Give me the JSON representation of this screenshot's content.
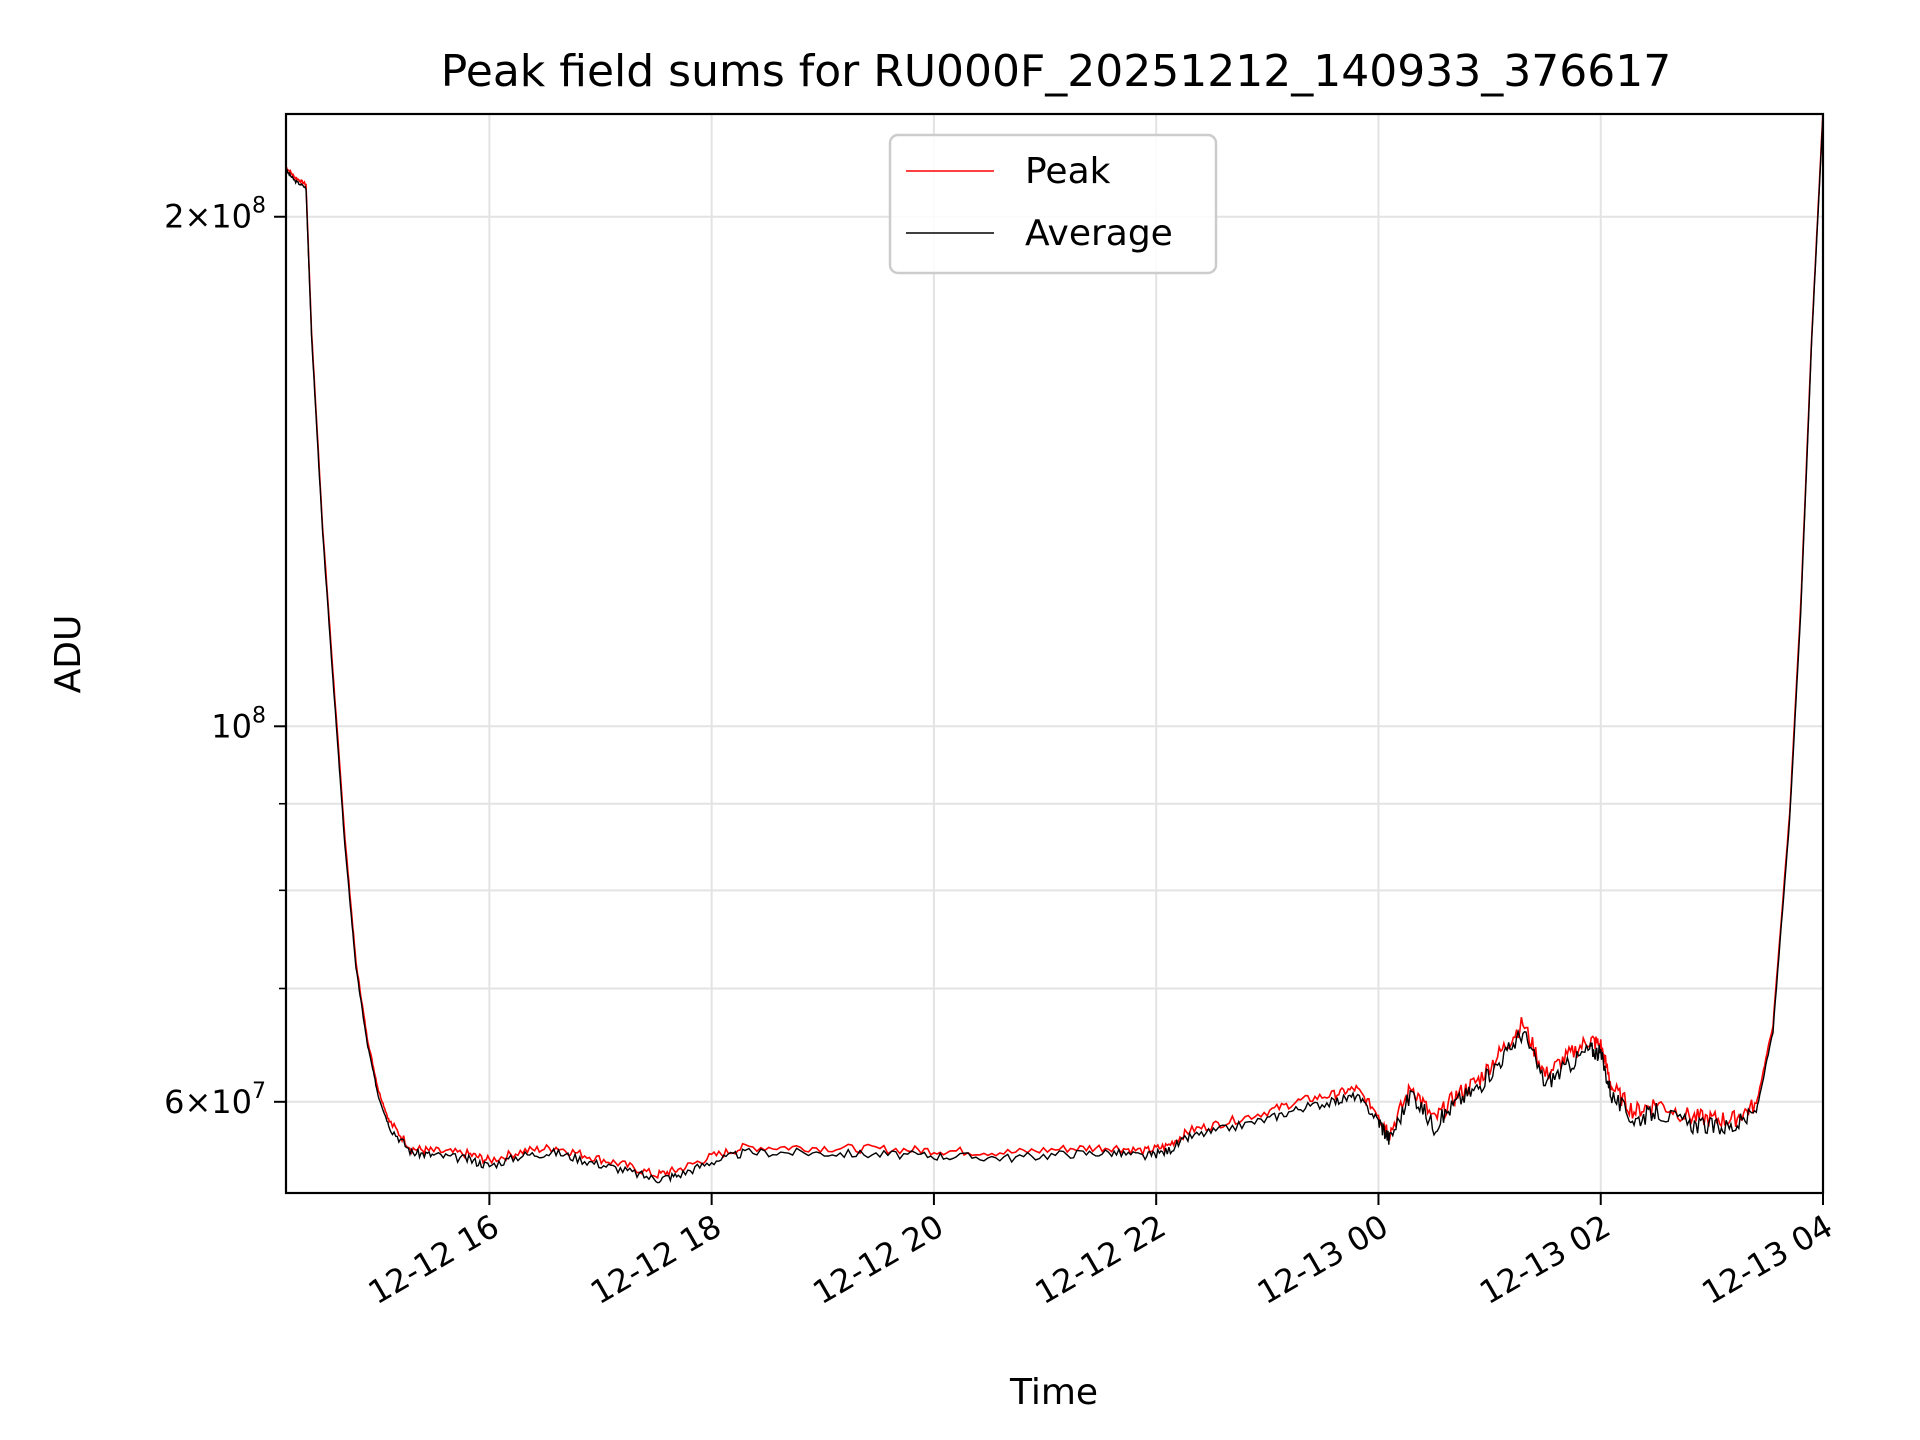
{
  "chart_data": {
    "type": "line",
    "title": "Peak field sums for RU000F_20251212_140933_376617",
    "xlabel": "Time",
    "ylabel": "ADU",
    "yscale": "log",
    "ylim": [
      53000000,
      230000000
    ],
    "xlim_hours": [
      14.17,
      28.0
    ],
    "grid": true,
    "legend_position": "top-center",
    "x_ticks": [
      {
        "hour": 16,
        "label": "12-12 16"
      },
      {
        "hour": 18,
        "label": "12-12 18"
      },
      {
        "hour": 20,
        "label": "12-12 20"
      },
      {
        "hour": 22,
        "label": "12-12 22"
      },
      {
        "hour": 24,
        "label": "12-13 00"
      },
      {
        "hour": 26,
        "label": "12-13 02"
      },
      {
        "hour": 28,
        "label": "12-13 04"
      }
    ],
    "y_ticks_major": [
      {
        "value": 100000000,
        "base": "10",
        "exp": "8",
        "coef": ""
      },
      {
        "value": 200000000,
        "base": "10",
        "exp": "8",
        "coef": "2×"
      },
      {
        "value": 60000000,
        "base": "10",
        "exp": "7",
        "coef": "6×"
      }
    ],
    "y_ticks_minor": [
      70000000,
      80000000,
      90000000
    ],
    "colors": {
      "peak": "#ff0000",
      "average": "#000000"
    },
    "series": [
      {
        "name": "Average",
        "color": "#000000",
        "points": [
          [
            14.17,
            213000000
          ],
          [
            14.25,
            210000000
          ],
          [
            14.35,
            208000000
          ],
          [
            14.4,
            170000000
          ],
          [
            14.5,
            130000000
          ],
          [
            14.6,
            105000000
          ],
          [
            14.7,
            85000000
          ],
          [
            14.8,
            72000000
          ],
          [
            14.9,
            65000000
          ],
          [
            15.0,
            60500000
          ],
          [
            15.1,
            58000000
          ],
          [
            15.3,
            56000000
          ],
          [
            15.5,
            55800000
          ],
          [
            15.8,
            55500000
          ],
          [
            16.0,
            55000000
          ],
          [
            16.3,
            55800000
          ],
          [
            16.6,
            56000000
          ],
          [
            16.9,
            55300000
          ],
          [
            17.2,
            54700000
          ],
          [
            17.5,
            54000000
          ],
          [
            17.7,
            54300000
          ],
          [
            18.0,
            55300000
          ],
          [
            18.3,
            56000000
          ],
          [
            18.8,
            56000000
          ],
          [
            19.3,
            55900000
          ],
          [
            19.8,
            55800000
          ],
          [
            20.2,
            55700000
          ],
          [
            20.7,
            55600000
          ],
          [
            21.2,
            55900000
          ],
          [
            21.6,
            56000000
          ],
          [
            21.9,
            55700000
          ],
          [
            22.1,
            56100000
          ],
          [
            22.3,
            57200000
          ],
          [
            22.6,
            57800000
          ],
          [
            23.0,
            58600000
          ],
          [
            23.3,
            59500000
          ],
          [
            23.6,
            60000000
          ],
          [
            23.8,
            60500000
          ],
          [
            24.0,
            58500000
          ],
          [
            24.1,
            57000000
          ],
          [
            24.3,
            60800000
          ],
          [
            24.5,
            58000000
          ],
          [
            24.7,
            60000000
          ],
          [
            24.9,
            61200000
          ],
          [
            25.1,
            63500000
          ],
          [
            25.3,
            66000000
          ],
          [
            25.5,
            61500000
          ],
          [
            25.7,
            63000000
          ],
          [
            25.9,
            64500000
          ],
          [
            26.0,
            64000000
          ],
          [
            26.1,
            60500000
          ],
          [
            26.3,
            58500000
          ],
          [
            26.5,
            59200000
          ],
          [
            26.8,
            58200000
          ],
          [
            27.0,
            58000000
          ],
          [
            27.2,
            58000000
          ],
          [
            27.4,
            59200000
          ],
          [
            27.55,
            66000000
          ],
          [
            27.7,
            88000000
          ],
          [
            27.8,
            117000000
          ],
          [
            27.9,
            170000000
          ],
          [
            28.0,
            230000000
          ]
        ]
      },
      {
        "name": "Peak",
        "color": "#ff0000",
        "points": [
          [
            14.17,
            214000000
          ],
          [
            14.25,
            211000000
          ],
          [
            14.35,
            209000000
          ],
          [
            14.4,
            171000000
          ],
          [
            14.5,
            131000000
          ],
          [
            14.6,
            106000000
          ],
          [
            14.7,
            86000000
          ],
          [
            14.8,
            72500000
          ],
          [
            14.9,
            65500000
          ],
          [
            15.0,
            61000000
          ],
          [
            15.1,
            58400000
          ],
          [
            15.3,
            56300000
          ],
          [
            15.5,
            56100000
          ],
          [
            15.8,
            55900000
          ],
          [
            16.0,
            55400000
          ],
          [
            16.3,
            56100000
          ],
          [
            16.6,
            56400000
          ],
          [
            16.9,
            55700000
          ],
          [
            17.2,
            55100000
          ],
          [
            17.5,
            54300000
          ],
          [
            17.7,
            54700000
          ],
          [
            18.0,
            55700000
          ],
          [
            18.3,
            56400000
          ],
          [
            18.8,
            56400000
          ],
          [
            19.3,
            56300000
          ],
          [
            19.8,
            56200000
          ],
          [
            20.2,
            56100000
          ],
          [
            20.7,
            56000000
          ],
          [
            21.2,
            56300000
          ],
          [
            21.6,
            56400000
          ],
          [
            21.9,
            56100000
          ],
          [
            22.1,
            56500000
          ],
          [
            22.3,
            57700000
          ],
          [
            22.6,
            58300000
          ],
          [
            23.0,
            59200000
          ],
          [
            23.3,
            60100000
          ],
          [
            23.6,
            60600000
          ],
          [
            23.8,
            61100000
          ],
          [
            24.0,
            59000000
          ],
          [
            24.1,
            57500000
          ],
          [
            24.3,
            61300000
          ],
          [
            24.5,
            58500000
          ],
          [
            24.7,
            60500000
          ],
          [
            24.9,
            61800000
          ],
          [
            25.1,
            64200000
          ],
          [
            25.3,
            66800000
          ],
          [
            25.5,
            62200000
          ],
          [
            25.7,
            63800000
          ],
          [
            25.9,
            65300000
          ],
          [
            26.0,
            64800000
          ],
          [
            26.1,
            61200000
          ],
          [
            26.3,
            59200000
          ],
          [
            26.5,
            59900000
          ],
          [
            26.8,
            58800000
          ],
          [
            27.0,
            58600000
          ],
          [
            27.2,
            58600000
          ],
          [
            27.4,
            59800000
          ],
          [
            27.55,
            66600000
          ],
          [
            27.7,
            88800000
          ],
          [
            27.8,
            118000000
          ],
          [
            27.9,
            171000000
          ],
          [
            28.0,
            231000000
          ]
        ]
      }
    ]
  }
}
